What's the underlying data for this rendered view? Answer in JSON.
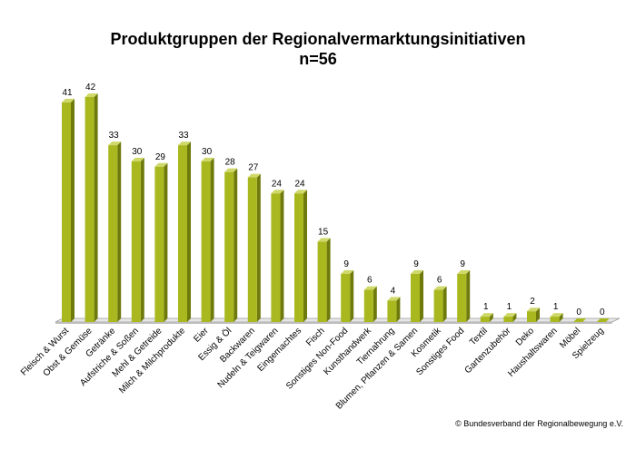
{
  "chart_data": {
    "type": "bar",
    "title": "Produktgruppen der Regionalvermarktungsinitiativen",
    "subtitle": "n=56",
    "categories": [
      "Fleisch & Wurst",
      "Obst & Gemüse",
      "Getränke",
      "Aufstriche & Soßen",
      "Mehl & Getreide",
      "Milch & Milchprodukte",
      "Eier",
      "Essig & Öl",
      "Backwaren",
      "Nudeln & Teigwaren",
      "Eingemachtes",
      "Fisch",
      "Sonstiges Non-Food",
      "Kunsthandwerk",
      "Tiernahrung",
      "Blumen, Pflanzen & Samen",
      "Kosmetik",
      "Sonstiges Food",
      "Textil",
      "Gartenzubehör",
      "Deko",
      "Haushaltswaren",
      "Möbel",
      "Spielzeug"
    ],
    "values": [
      41,
      42,
      33,
      30,
      29,
      33,
      30,
      28,
      27,
      24,
      24,
      15,
      9,
      6,
      4,
      9,
      6,
      9,
      1,
      1,
      2,
      1,
      0,
      0
    ],
    "ylim": [
      0,
      42
    ],
    "grid": false,
    "legend": "none",
    "bar_color": "#a9b81e",
    "bar_side_color": "#6f7a0c",
    "bar_top_color": "#cfd96a"
  },
  "credit": "© Bundesverband der Regionalbewegung e.V."
}
